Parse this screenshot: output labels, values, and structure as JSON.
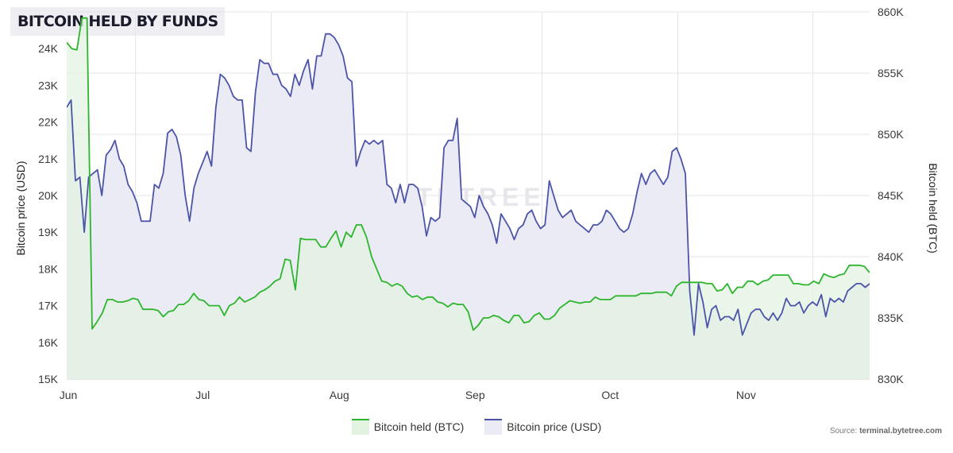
{
  "title": "BITCOIN HELD BY FUNDS",
  "watermark": "BYTETREE",
  "source_label": "Source: ",
  "source_site": "terminal.bytetree.com",
  "chart_data": {
    "type": "line",
    "grid": true,
    "legend_position": "bottom-center",
    "x_ticks": [
      "Jun",
      "Jul",
      "Aug",
      "Sep",
      "Oct",
      "Nov"
    ],
    "y_left": {
      "label": "Bitcoin price (USD)",
      "range": [
        15000,
        25000
      ],
      "ticks": [
        "15K",
        "16K",
        "17K",
        "18K",
        "19K",
        "20K",
        "21K",
        "22K",
        "23K",
        "24K"
      ]
    },
    "y_right": {
      "label": "Bitcoin held (BTC)",
      "range": [
        830000,
        860000
      ],
      "ticks": [
        "830K",
        "835K",
        "840K",
        "845K",
        "850K",
        "855K",
        "860K"
      ]
    },
    "series": [
      {
        "name": "Bitcoin held (BTC)",
        "axis": "right",
        "color": "#2db52d",
        "fill": "#e3f3e1",
        "values": [
          857500,
          857000,
          856900,
          859500,
          859500,
          834100,
          834700,
          835400,
          836500,
          836500,
          836300,
          836300,
          836400,
          836600,
          836500,
          835700,
          835700,
          835700,
          835600,
          835100,
          835500,
          835600,
          836100,
          836100,
          836400,
          837000,
          836500,
          836400,
          836000,
          836000,
          836000,
          835200,
          836000,
          836200,
          836700,
          836300,
          836500,
          836700,
          837100,
          837300,
          837600,
          838000,
          838200,
          839800,
          839700,
          837300,
          841500,
          841400,
          841400,
          841400,
          840800,
          840800,
          841500,
          842100,
          840800,
          842000,
          841600,
          842600,
          842600,
          841600,
          840000,
          839000,
          838000,
          837900,
          837600,
          837800,
          837600,
          837000,
          836700,
          836800,
          836500,
          836700,
          836700,
          836300,
          836200,
          835900,
          836200,
          836100,
          836100,
          835500,
          834000,
          834400,
          835000,
          835000,
          835200,
          835100,
          834800,
          834600,
          835200,
          835200,
          834600,
          834700,
          835200,
          835400,
          834900,
          834900,
          835200,
          835800,
          836100,
          836400,
          836300,
          836200,
          836300,
          836300,
          836700,
          836500,
          836500,
          836500,
          836800,
          836800,
          836800,
          836800,
          836800,
          837000,
          837000,
          837000,
          837100,
          837100,
          837100,
          836800,
          837600,
          837900,
          837900,
          837900,
          837900,
          837900,
          837800,
          837800,
          837200,
          837300,
          837800,
          837000,
          837500,
          837500,
          838000,
          838000,
          837700,
          838000,
          838100,
          838500,
          838500,
          838500,
          838500,
          837800,
          837800,
          837700,
          837700,
          838000,
          837800,
          838600,
          838400,
          838300,
          838500,
          838600,
          839300,
          839300,
          839300,
          839200,
          838700
        ]
      },
      {
        "name": "Bitcoin price (USD)",
        "axis": "left",
        "color": "#4c54a8",
        "fill": "#ebebf6",
        "values": [
          22400,
          22600,
          20400,
          20500,
          19000,
          20500,
          20600,
          20700,
          20000,
          21100,
          21250,
          21500,
          21000,
          20800,
          20300,
          20100,
          19800,
          19300,
          19300,
          19300,
          20300,
          20200,
          20600,
          21700,
          21800,
          21600,
          21100,
          20000,
          19300,
          20200,
          20600,
          20900,
          21200,
          20800,
          22400,
          23300,
          23200,
          23000,
          22700,
          22600,
          22600,
          21300,
          21200,
          22800,
          23700,
          23600,
          23600,
          23300,
          23300,
          23000,
          22900,
          22700,
          23300,
          23000,
          23400,
          23700,
          22900,
          23800,
          23800,
          24400,
          24400,
          24300,
          24100,
          23800,
          23200,
          23100,
          20800,
          21200,
          21500,
          21400,
          21500,
          21400,
          21500,
          20300,
          20200,
          19800,
          20300,
          19800,
          20300,
          20300,
          20200,
          19700,
          18900,
          19400,
          19300,
          19400,
          21300,
          21500,
          21500,
          22100,
          19900,
          19800,
          19700,
          19400,
          20000,
          19700,
          19500,
          19200,
          18700,
          19500,
          19300,
          19100,
          18800,
          19100,
          19200,
          19500,
          19600,
          19300,
          19100,
          19200,
          20400,
          20000,
          19600,
          19400,
          19500,
          19600,
          19300,
          19200,
          19100,
          19000,
          19200,
          19200,
          19300,
          19600,
          19500,
          19300,
          19100,
          19000,
          19100,
          19500,
          20100,
          20600,
          20300,
          20600,
          20700,
          20500,
          20300,
          20500,
          21200,
          21300,
          21000,
          20600,
          17400,
          16200,
          17600,
          17100,
          16400,
          16900,
          17000,
          16600,
          16700,
          16700,
          16600,
          16900,
          16200,
          16500,
          16800,
          16900,
          16900,
          16700,
          16600,
          16800,
          16600,
          16800,
          17200,
          17000,
          17000,
          17100,
          16800,
          17000,
          17100,
          17000,
          17300,
          16700,
          17200,
          17100,
          17200,
          17100,
          17400,
          17500,
          17600,
          17600,
          17500,
          17600
        ]
      }
    ]
  }
}
